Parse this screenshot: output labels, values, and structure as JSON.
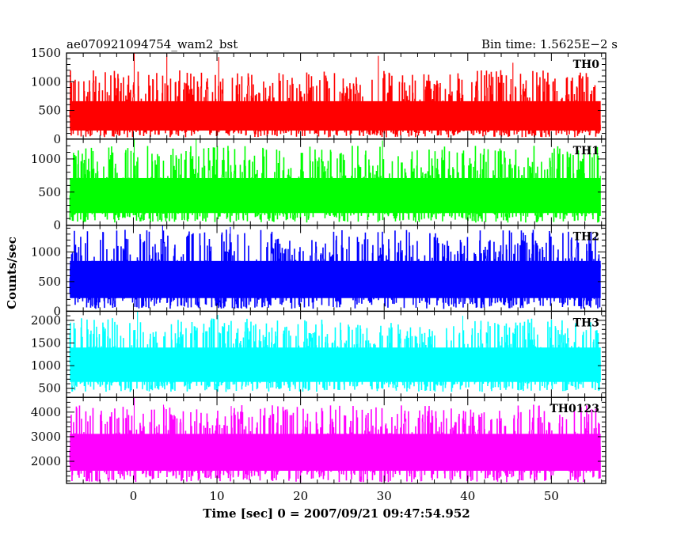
{
  "header": {
    "title_left": "ae070921094754_wam2_bst",
    "title_right": "Bin time: 1.5625E−2 s"
  },
  "chart_data": {
    "type": "line",
    "xlabel": "Time [sec] 0 = 2007/09/21 09:47:54.952",
    "ylabel": "Counts/sec",
    "xlim": [
      -8,
      56.5
    ],
    "x_ticks": [
      0,
      10,
      20,
      30,
      40,
      50
    ],
    "x_tick_labels": [
      "0",
      "10",
      "20",
      "30",
      "40",
      "50"
    ],
    "x_minor_step": 2,
    "bin_time": 0.015625,
    "data_x_range": [
      -7.6,
      55.9
    ],
    "panels": [
      {
        "name": "TH0",
        "color": "#ff0000",
        "ylim": [
          0,
          1500
        ],
        "y_ticks": [
          0,
          500,
          1000,
          1500
        ],
        "y_tick_labels": [
          "0",
          "500",
          "1000",
          "1500"
        ],
        "y_minor_step": 100,
        "mean": 370,
        "low": 30,
        "high": 1200,
        "peak": 1500,
        "spikes": [
          [
            0.1,
            1500
          ],
          [
            4.0,
            1480
          ],
          [
            10.2,
            1430
          ],
          [
            29.3,
            1450
          ],
          [
            45.4,
            1330
          ]
        ]
      },
      {
        "name": "TH1",
        "color": "#00ff00",
        "ylim": [
          0,
          1300
        ],
        "y_ticks": [
          0,
          500,
          1000
        ],
        "y_tick_labels": [
          "0",
          "500",
          "1000"
        ],
        "y_minor_step": 100,
        "mean": 450,
        "low": 40,
        "high": 1200,
        "peak": 1300,
        "spikes": [
          [
            0.1,
            1300
          ],
          [
            7.5,
            1300
          ],
          [
            29.8,
            1280
          ]
        ]
      },
      {
        "name": "TH2",
        "color": "#0000ff",
        "ylim": [
          0,
          1450
        ],
        "y_ticks": [
          0,
          500,
          1000
        ],
        "y_tick_labels": [
          "0",
          "500",
          "1000"
        ],
        "y_minor_step": 100,
        "mean": 560,
        "low": 40,
        "high": 1380,
        "peak": 1450,
        "spikes": [
          [
            3.5,
            1440
          ],
          [
            11.6,
            1420
          ]
        ]
      },
      {
        "name": "TH3",
        "color": "#00ffff",
        "ylim": [
          300,
          2200
        ],
        "y_ticks": [
          500,
          1000,
          1500,
          2000
        ],
        "y_tick_labels": [
          "500",
          "1000",
          "1500",
          "2000"
        ],
        "y_minor_step": 100,
        "mean": 1050,
        "low": 420,
        "high": 2050,
        "peak": 2200,
        "spikes": [
          [
            0.5,
            2190
          ],
          [
            10.1,
            2120
          ],
          [
            39.4,
            2100
          ]
        ]
      },
      {
        "name": "TH0123",
        "color": "#ff00ff",
        "ylim": [
          1100,
          4600
        ],
        "y_ticks": [
          2000,
          3000,
          4000
        ],
        "y_tick_labels": [
          "2000",
          "3000",
          "4000"
        ],
        "y_minor_step": 200,
        "mean": 2480,
        "low": 1150,
        "high": 4300,
        "peak": 4600,
        "spikes": [
          [
            0.1,
            4600
          ],
          [
            3.6,
            4300
          ],
          [
            11.7,
            4250
          ]
        ]
      }
    ]
  }
}
